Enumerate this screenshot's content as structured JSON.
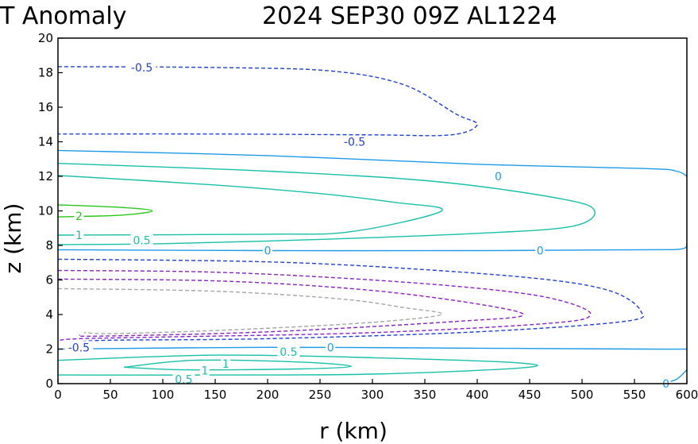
{
  "chart_data": {
    "type": "contour",
    "title_left": "T Anomaly",
    "title_right": "2024 SEP30 09Z   AL1224",
    "xlabel": "r (km)",
    "ylabel": "z (km)",
    "xlim": [
      0,
      600
    ],
    "ylim": [
      0,
      20
    ],
    "xticks": [
      0,
      50,
      100,
      150,
      200,
      250,
      300,
      350,
      400,
      450,
      500,
      550,
      600
    ],
    "yticks": [
      0,
      2,
      4,
      6,
      8,
      10,
      12,
      14,
      16,
      18,
      20
    ],
    "levels": [
      {
        "value": "-0.5",
        "color": "#1f3fd8",
        "dashed": true
      },
      {
        "value": "-1",
        "color": "#8a1fd0",
        "dashed": true
      },
      {
        "value": "-1.5",
        "color": "#a6a6a6",
        "dashed": true
      },
      {
        "value": "0",
        "color": "#1e9be8",
        "dashed": false
      },
      {
        "value": "0.5",
        "color": "#18c0a8",
        "dashed": false
      },
      {
        "value": "1",
        "color": "#20c85a",
        "dashed": false
      },
      {
        "value": "2",
        "color": "#28c818",
        "dashed": false
      }
    ],
    "contours": [
      {
        "level": "-0.5",
        "color": "#1f3fd8",
        "dashed": true,
        "points": [
          [
            0,
            18.35
          ],
          [
            150,
            18.3
          ],
          [
            260,
            18.1
          ],
          [
            330,
            17.3
          ],
          [
            380,
            15.6
          ],
          [
            400,
            15.0
          ],
          [
            375,
            14.4
          ],
          [
            300,
            14.4
          ],
          [
            150,
            14.45
          ],
          [
            0,
            14.45
          ]
        ]
      },
      {
        "level": "0",
        "color": "#1e9be8",
        "dashed": false,
        "points": [
          [
            0,
            13.5
          ],
          [
            200,
            13.2
          ],
          [
            400,
            12.7
          ],
          [
            560,
            12.45
          ],
          [
            590,
            12.3
          ],
          [
            600,
            12.0
          ]
        ]
      },
      {
        "level": "0.5",
        "color": "#18c0a8",
        "dashed": false,
        "points": [
          [
            0,
            12.75
          ],
          [
            200,
            12.3
          ],
          [
            360,
            11.7
          ],
          [
            480,
            10.7
          ],
          [
            512,
            10.0
          ],
          [
            490,
            9.1
          ],
          [
            400,
            8.7
          ],
          [
            250,
            8.35
          ],
          [
            100,
            8.1
          ],
          [
            0,
            8.05
          ]
        ]
      },
      {
        "level": "1",
        "color": "#18c0a8",
        "dashed": false,
        "points": [
          [
            0,
            12.05
          ],
          [
            150,
            11.5
          ],
          [
            250,
            11.0
          ],
          [
            320,
            10.5
          ],
          [
            366,
            10.0
          ],
          [
            280,
            8.8
          ],
          [
            200,
            8.65
          ],
          [
            0,
            8.6
          ]
        ]
      },
      {
        "level": "2",
        "color": "#28c818",
        "dashed": false,
        "points": [
          [
            0,
            10.35
          ],
          [
            60,
            10.2
          ],
          [
            90,
            10.0
          ],
          [
            60,
            9.75
          ],
          [
            0,
            9.65
          ]
        ]
      },
      {
        "level": "0",
        "color": "#1e9be8",
        "dashed": false,
        "points": [
          [
            0,
            7.75
          ],
          [
            200,
            7.7
          ],
          [
            400,
            7.7
          ],
          [
            560,
            7.75
          ],
          [
            595,
            7.8
          ],
          [
            600,
            8.1
          ]
        ]
      },
      {
        "level": "-0.5",
        "color": "#1f3fd8",
        "dashed": true,
        "points": [
          [
            0,
            7.2
          ],
          [
            200,
            7.05
          ],
          [
            350,
            6.6
          ],
          [
            470,
            6.0
          ],
          [
            530,
            5.3
          ],
          [
            556,
            4.2
          ],
          [
            540,
            3.6
          ],
          [
            400,
            3.0
          ],
          [
            200,
            2.6
          ],
          [
            40,
            2.5
          ],
          [
            20,
            2.3
          ]
        ]
      },
      {
        "level": "-1",
        "color": "#8a1fd0",
        "dashed": true,
        "points": [
          [
            0,
            6.55
          ],
          [
            150,
            6.45
          ],
          [
            300,
            6.0
          ],
          [
            420,
            5.4
          ],
          [
            480,
            4.8
          ],
          [
            508,
            4.0
          ],
          [
            470,
            3.5
          ],
          [
            300,
            2.95
          ],
          [
            100,
            2.7
          ],
          [
            20,
            2.6
          ],
          [
            0,
            2.5
          ]
        ]
      },
      {
        "level": "-1",
        "color": "#8a1fd0",
        "dashed": true,
        "points": [
          [
            0,
            6.05
          ],
          [
            150,
            5.95
          ],
          [
            280,
            5.5
          ],
          [
            380,
            4.8
          ],
          [
            444,
            4.0
          ],
          [
            380,
            3.6
          ],
          [
            200,
            3.0
          ],
          [
            40,
            2.75
          ],
          [
            20,
            2.8
          ]
        ]
      },
      {
        "level": "-1.5",
        "color": "#a6a6a6",
        "dashed": true,
        "points": [
          [
            0,
            5.5
          ],
          [
            150,
            5.35
          ],
          [
            270,
            4.9
          ],
          [
            330,
            4.4
          ],
          [
            366,
            4.0
          ],
          [
            300,
            3.55
          ],
          [
            180,
            3.15
          ],
          [
            60,
            2.9
          ],
          [
            25,
            2.95
          ]
        ]
      },
      {
        "level": "0",
        "color": "#1e9be8",
        "dashed": false,
        "points": [
          [
            0,
            2.0
          ],
          [
            200,
            2.1
          ],
          [
            400,
            2.05
          ],
          [
            560,
            2.0
          ],
          [
            600,
            2.0
          ]
        ]
      },
      {
        "level": "0.5",
        "color": "#18c0a8",
        "dashed": false,
        "points": [
          [
            0,
            1.35
          ],
          [
            150,
            1.65
          ],
          [
            300,
            1.5
          ],
          [
            440,
            1.2
          ],
          [
            440,
            0.9
          ],
          [
            300,
            0.55
          ],
          [
            150,
            0.5
          ],
          [
            0,
            0.5
          ]
        ]
      },
      {
        "level": "1",
        "color": "#18c0a8",
        "dashed": false,
        "points": [
          [
            63,
            0.95
          ],
          [
            130,
            1.35
          ],
          [
            230,
            1.25
          ],
          [
            280,
            1.0
          ],
          [
            230,
            0.85
          ],
          [
            120,
            0.8
          ],
          [
            63,
            0.95
          ]
        ]
      },
      {
        "level": "0",
        "color": "#1e9be8",
        "dashed": false,
        "points": [
          [
            575,
            0.0
          ],
          [
            590,
            0.25
          ],
          [
            600,
            0.8
          ]
        ]
      }
    ],
    "contour_labels": [
      {
        "text": "-0.5",
        "x": 80,
        "y": 18.3,
        "color": "#1f3fd8"
      },
      {
        "text": "-0.5",
        "x": 283,
        "y": 14.0,
        "color": "#1f3fd8"
      },
      {
        "text": "0",
        "x": 420,
        "y": 12.0,
        "color": "#1e9be8"
      },
      {
        "text": "2",
        "x": 20,
        "y": 9.7,
        "color": "#28c818"
      },
      {
        "text": "1",
        "x": 20,
        "y": 8.6,
        "color": "#18c0a8"
      },
      {
        "text": "0.5",
        "x": 80,
        "y": 8.3,
        "color": "#18c0a8"
      },
      {
        "text": "0",
        "x": 200,
        "y": 7.7,
        "color": "#1e9be8"
      },
      {
        "text": "0",
        "x": 460,
        "y": 7.7,
        "color": "#1e9be8"
      },
      {
        "text": "-0.5",
        "x": 20,
        "y": 2.1,
        "color": "#1f3fd8"
      },
      {
        "text": "0.5",
        "x": 220,
        "y": 1.85,
        "color": "#18c0a8"
      },
      {
        "text": "0",
        "x": 260,
        "y": 2.1,
        "color": "#1e9be8"
      },
      {
        "text": "1",
        "x": 160,
        "y": 1.15,
        "color": "#18c0a8"
      },
      {
        "text": "1",
        "x": 140,
        "y": 0.75,
        "color": "#18c0a8"
      },
      {
        "text": "0.5",
        "x": 120,
        "y": 0.25,
        "color": "#18c0a8"
      },
      {
        "text": "0",
        "x": 580,
        "y": 0.0,
        "color": "#1e9be8"
      }
    ]
  }
}
